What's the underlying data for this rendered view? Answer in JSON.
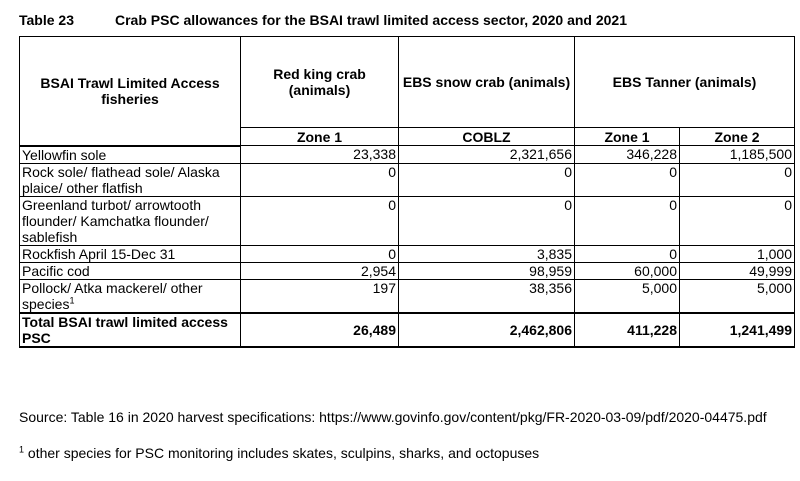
{
  "caption": {
    "number": "Table 23",
    "title": "Crab PSC allowances for the BSAI trawl limited access sector, 2020 and 2021"
  },
  "header": {
    "fisheries": "BSAI Trawl Limited Access fisheries",
    "red_king_crab": "Red king crab (animals)",
    "snow_crab": "EBS snow crab (animals)",
    "tanner": "EBS Tanner (animals)",
    "zones": [
      "Zone 1",
      "COBLZ",
      "Zone 1",
      "Zone 2"
    ]
  },
  "rows": [
    {
      "name": "Yellowfin sole",
      "values": [
        "23,338",
        "2,321,656",
        "346,228",
        "1,185,500"
      ]
    },
    {
      "name": "Rock sole/ flathead sole/ Alaska plaice/ other flatfish",
      "values": [
        "0",
        "0",
        "0",
        "0"
      ]
    },
    {
      "name": "Greenland turbot/ arrowtooth flounder/ Kamchatka flounder/ sablefish",
      "values": [
        "0",
        "0",
        "0",
        "0"
      ]
    },
    {
      "name": "Rockfish April 15-Dec 31",
      "values": [
        "0",
        "3,835",
        "0",
        "1,000"
      ]
    },
    {
      "name": "Pacific cod",
      "values": [
        "2,954",
        "98,959",
        "60,000",
        "49,999"
      ]
    },
    {
      "name": "Pollock/ Atka mackerel/ other species",
      "sup": "1",
      "values": [
        "197",
        "38,356",
        "5,000",
        "5,000"
      ]
    }
  ],
  "total": {
    "name": "Total BSAI trawl limited access PSC",
    "values": [
      "26,489",
      "2,462,806",
      "411,228",
      "1,241,499"
    ]
  },
  "source": "Source: Table 16 in 2020 harvest specifications: https://www.govinfo.gov/content/pkg/FR-2020-03-09/pdf/2020-04475.pdf",
  "footnote": {
    "marker": "1",
    "text": " other species for PSC monitoring includes skates, sculpins, sharks, and octopuses"
  }
}
